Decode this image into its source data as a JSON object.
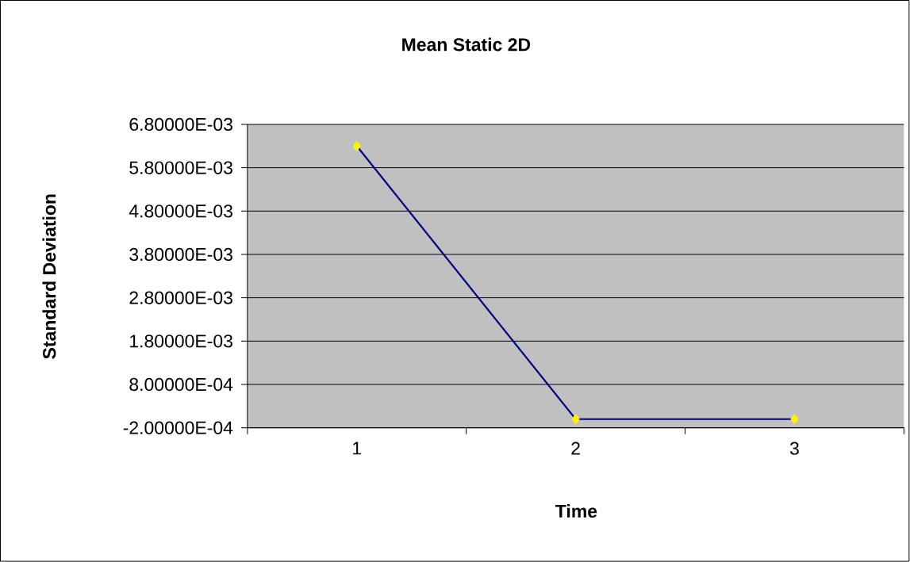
{
  "chart_data": {
    "type": "line",
    "title": "Mean Static 2D",
    "xlabel": "Time",
    "ylabel": "Standard Deviation",
    "categories": [
      "1",
      "2",
      "3"
    ],
    "series": [
      {
        "color": "#000080",
        "values": [
          0.0063,
          0,
          0
        ]
      }
    ],
    "ylim": [
      -0.0002,
      0.0068
    ],
    "yticks": [
      {
        "value": -0.0002,
        "label": "-2.00000E-04"
      },
      {
        "value": 0.0008,
        "label": "8.00000E-04"
      },
      {
        "value": 0.0018,
        "label": "1.80000E-03"
      },
      {
        "value": 0.0028,
        "label": "2.80000E-03"
      },
      {
        "value": 0.0038,
        "label": "3.80000E-03"
      },
      {
        "value": 0.0048,
        "label": "4.80000E-03"
      },
      {
        "value": 0.0058,
        "label": "5.80000E-03"
      },
      {
        "value": 0.0068,
        "label": "6.80000E-03"
      }
    ],
    "grid": "y",
    "marker": "diamond",
    "line_style": "solid"
  }
}
